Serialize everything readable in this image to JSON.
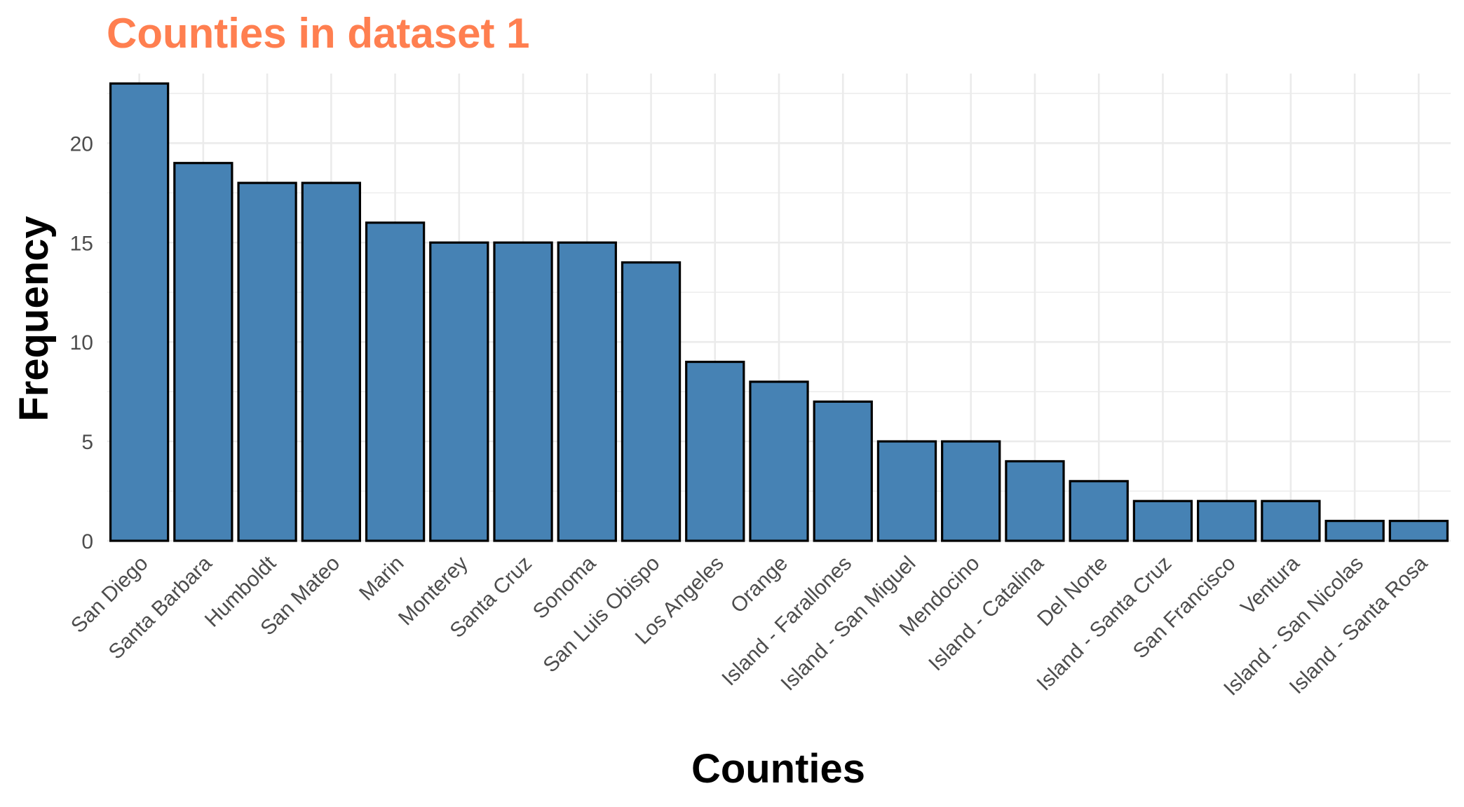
{
  "chart_data": {
    "type": "bar",
    "title": "Counties in dataset 1",
    "xlabel": "Counties",
    "ylabel": "Frequency",
    "categories": [
      "San Diego",
      "Santa Barbara",
      "Humboldt",
      "San Mateo",
      "Marin",
      "Monterey",
      "Santa Cruz",
      "Sonoma",
      "San Luis Obispo",
      "Los Angeles",
      "Orange",
      "Island - Farallones",
      "Island - San Miguel",
      "Mendocino",
      "Island - Catalina",
      "Del Norte",
      "Island - Santa Cruz",
      "San Francisco",
      "Ventura",
      "Island - San Nicolas",
      "Island - Santa Rosa"
    ],
    "values": [
      23,
      19,
      18,
      18,
      16,
      15,
      15,
      15,
      14,
      9,
      8,
      7,
      5,
      5,
      4,
      3,
      2,
      2,
      2,
      1,
      1
    ],
    "ylim": [
      0,
      23.5
    ],
    "yticks": [
      "0",
      "5",
      "10",
      "15",
      "20"
    ],
    "grid": true,
    "colors": {
      "bar_fill": "#4682B4",
      "bar_stroke": "#000000",
      "title": "#FF7F50",
      "grid": "#EBEBEB"
    }
  }
}
